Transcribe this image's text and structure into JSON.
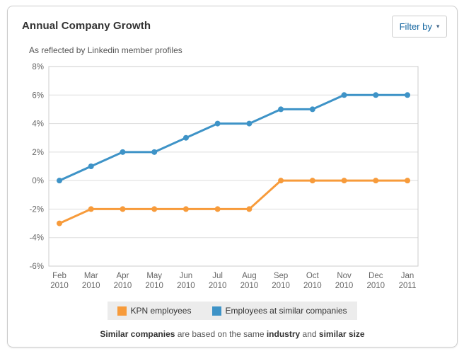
{
  "header": {
    "title": "Annual Company Growth",
    "filter_button": {
      "label": "Filter by",
      "caret": "▾"
    },
    "subtitle": "As reflected by Linkedin member profiles"
  },
  "colors": {
    "kpn_orange": "#f79b3b",
    "similar_blue": "#3e93c7",
    "grid_line": "#dddddd",
    "plot_border": "#cccccc",
    "axis_label": "#666666",
    "legend_bg": "#ececec",
    "link_blue": "#1466a0"
  },
  "chart_data": {
    "type": "line",
    "title": "Annual Company Growth",
    "xlabel": "",
    "ylabel": "",
    "ylim": [
      -6,
      8
    ],
    "ytick_step": 2,
    "ytick_suffix": "%",
    "grid": "horizontal",
    "legend_position": "bottom",
    "categories": [
      {
        "month": "Feb",
        "year": "2010"
      },
      {
        "month": "Mar",
        "year": "2010"
      },
      {
        "month": "Apr",
        "year": "2010"
      },
      {
        "month": "May",
        "year": "2010"
      },
      {
        "month": "Jun",
        "year": "2010"
      },
      {
        "month": "Jul",
        "year": "2010"
      },
      {
        "month": "Aug",
        "year": "2010"
      },
      {
        "month": "Sep",
        "year": "2010"
      },
      {
        "month": "Oct",
        "year": "2010"
      },
      {
        "month": "Nov",
        "year": "2010"
      },
      {
        "month": "Dec",
        "year": "2010"
      },
      {
        "month": "Jan",
        "year": "2011"
      }
    ],
    "series": [
      {
        "name": "KPN employees",
        "color": "#f79b3b",
        "values": [
          -3,
          -2,
          -2,
          -2,
          -2,
          -2,
          -2,
          0,
          0,
          0,
          0,
          0
        ]
      },
      {
        "name": "Employees at similar companies",
        "color": "#3e93c7",
        "values": [
          0,
          1,
          2,
          2,
          3,
          4,
          4,
          5,
          5,
          6,
          6,
          6
        ]
      }
    ]
  },
  "footer": {
    "segments": [
      {
        "text": "Similar companies",
        "bold": true
      },
      {
        "text": " are based on the same ",
        "bold": false
      },
      {
        "text": "industry",
        "bold": true
      },
      {
        "text": " and ",
        "bold": false
      },
      {
        "text": "similar size",
        "bold": true
      }
    ]
  }
}
